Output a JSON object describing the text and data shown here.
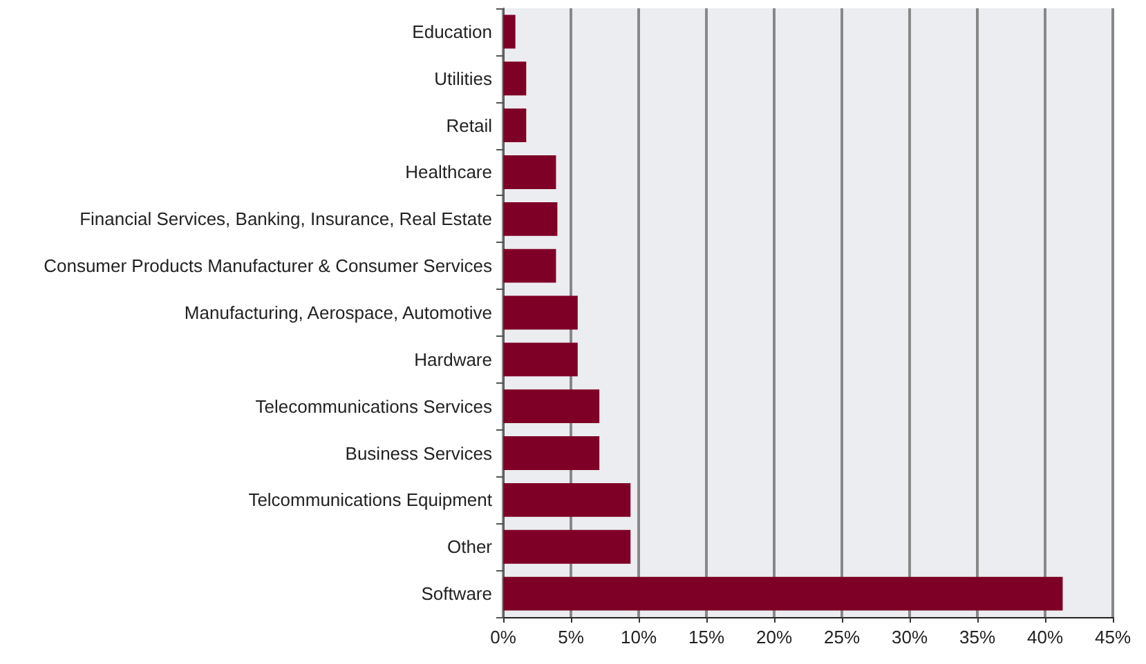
{
  "chart_data": {
    "type": "bar",
    "orientation": "horizontal",
    "categories": [
      "Education",
      "Utilities",
      "Retail",
      "Healthcare",
      "Financial Services, Banking, Insurance, Real Estate",
      "Consumer Products Manufacturer & Consumer Services",
      "Manufacturing, Aerospace, Automotive",
      "Hardware",
      "Telecommunications Services",
      "Business Services",
      "Telcommunications Equipment",
      "Other",
      "Software"
    ],
    "values": [
      0.9,
      1.7,
      1.7,
      3.9,
      4.0,
      3.9,
      5.5,
      5.5,
      7.1,
      7.1,
      9.4,
      9.4,
      41.3
    ],
    "color": "#7f0026",
    "xlim": [
      0,
      45
    ],
    "xticks": [
      {
        "value": 0,
        "label": "0%"
      },
      {
        "value": 5,
        "label": "5%"
      },
      {
        "value": 10,
        "label": "10%"
      },
      {
        "value": 15,
        "label": "15%"
      },
      {
        "value": 20,
        "label": "20%"
      },
      {
        "value": 25,
        "label": "25%"
      },
      {
        "value": 30,
        "label": "30%"
      },
      {
        "value": 35,
        "label": "35%"
      },
      {
        "value": 40,
        "label": "40%"
      },
      {
        "value": 45,
        "label": "45%"
      }
    ],
    "grid": "x"
  }
}
